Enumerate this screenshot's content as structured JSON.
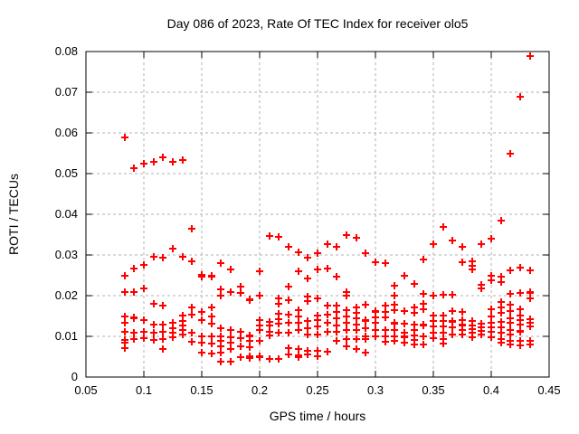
{
  "title": "Day 086 of 2023, Rate Of TEC Index for receiver olo5",
  "colors": {
    "marker": "#ff0000",
    "grid": "#b0b0b0",
    "axis": "#000000",
    "text": "#000000",
    "background": "#ffffff"
  },
  "chart_data": {
    "type": "scatter",
    "title": "Day 086 of 2023, Rate Of TEC Index for receiver olo5",
    "xlabel": "GPS time / hours",
    "ylabel": "ROTI / TECUs",
    "xlim": [
      0.05,
      0.45
    ],
    "ylim": [
      0,
      0.08
    ],
    "x_ticks": [
      "0.05",
      "0.1",
      "0.15",
      "0.2",
      "0.25",
      "0.3",
      "0.35",
      "0.4",
      "0.45"
    ],
    "y_ticks": [
      "0",
      "0.01",
      "0.02",
      "0.03",
      "0.04",
      "0.05",
      "0.06",
      "0.07",
      "0.08"
    ],
    "grid": true,
    "grid_style": "dashed",
    "legend": "none",
    "marker": {
      "shape": "plus",
      "color": "#ff0000",
      "size": 9
    },
    "points": [
      [
        0.0833,
        0.059
      ],
      [
        0.0833,
        0.025
      ],
      [
        0.0833,
        0.021
      ],
      [
        0.0833,
        0.015
      ],
      [
        0.0833,
        0.0133
      ],
      [
        0.0833,
        0.0112
      ],
      [
        0.0833,
        0.0092
      ],
      [
        0.0833,
        0.0085
      ],
      [
        0.0833,
        0.0072
      ],
      [
        0.0917,
        0.0513
      ],
      [
        0.0917,
        0.0267
      ],
      [
        0.0917,
        0.0209
      ],
      [
        0.0917,
        0.0147
      ],
      [
        0.0917,
        0.0145
      ],
      [
        0.0917,
        0.011
      ],
      [
        0.0917,
        0.0093
      ],
      [
        0.1,
        0.0525
      ],
      [
        0.1,
        0.0276
      ],
      [
        0.1,
        0.0218
      ],
      [
        0.1,
        0.0141
      ],
      [
        0.1,
        0.0112
      ],
      [
        0.1,
        0.0095
      ],
      [
        0.1083,
        0.053
      ],
      [
        0.1083,
        0.0296
      ],
      [
        0.1083,
        0.018
      ],
      [
        0.1083,
        0.013
      ],
      [
        0.1083,
        0.011
      ],
      [
        0.1083,
        0.0091
      ],
      [
        0.1167,
        0.054
      ],
      [
        0.1167,
        0.0293
      ],
      [
        0.1167,
        0.0176
      ],
      [
        0.1167,
        0.0128
      ],
      [
        0.1167,
        0.0112
      ],
      [
        0.1167,
        0.0093
      ],
      [
        0.1167,
        0.0069
      ],
      [
        0.125,
        0.053
      ],
      [
        0.125,
        0.0315
      ],
      [
        0.125,
        0.0134
      ],
      [
        0.125,
        0.0121
      ],
      [
        0.125,
        0.011
      ],
      [
        0.125,
        0.0098
      ],
      [
        0.1333,
        0.0533
      ],
      [
        0.1333,
        0.0296
      ],
      [
        0.1333,
        0.0151
      ],
      [
        0.1333,
        0.0138
      ],
      [
        0.1333,
        0.0127
      ],
      [
        0.1333,
        0.0116
      ],
      [
        0.1333,
        0.0105
      ],
      [
        0.1417,
        0.0365
      ],
      [
        0.1417,
        0.0285
      ],
      [
        0.1417,
        0.0171
      ],
      [
        0.1417,
        0.0154
      ],
      [
        0.1417,
        0.011
      ],
      [
        0.1417,
        0.0108
      ],
      [
        0.1417,
        0.0087
      ],
      [
        0.15,
        0.0252
      ],
      [
        0.15,
        0.0247
      ],
      [
        0.15,
        0.016
      ],
      [
        0.15,
        0.0139
      ],
      [
        0.15,
        0.01
      ],
      [
        0.15,
        0.0085
      ],
      [
        0.15,
        0.006
      ],
      [
        0.1583,
        0.025
      ],
      [
        0.1583,
        0.0246
      ],
      [
        0.1583,
        0.0171
      ],
      [
        0.1583,
        0.0149
      ],
      [
        0.1583,
        0.0131
      ],
      [
        0.1583,
        0.01
      ],
      [
        0.1583,
        0.0082
      ],
      [
        0.1583,
        0.0057
      ],
      [
        0.1667,
        0.028
      ],
      [
        0.1667,
        0.0216
      ],
      [
        0.1667,
        0.02
      ],
      [
        0.1667,
        0.012
      ],
      [
        0.1667,
        0.01
      ],
      [
        0.1667,
        0.0088
      ],
      [
        0.1667,
        0.0075
      ],
      [
        0.1667,
        0.006
      ],
      [
        0.1667,
        0.0038
      ],
      [
        0.175,
        0.0265
      ],
      [
        0.175,
        0.021
      ],
      [
        0.175,
        0.0115
      ],
      [
        0.175,
        0.0098
      ],
      [
        0.175,
        0.0085
      ],
      [
        0.175,
        0.007
      ],
      [
        0.175,
        0.0037
      ],
      [
        0.1833,
        0.0222
      ],
      [
        0.1833,
        0.0206
      ],
      [
        0.1833,
        0.0112
      ],
      [
        0.1833,
        0.0096
      ],
      [
        0.1833,
        0.0075
      ],
      [
        0.1833,
        0.0048
      ],
      [
        0.1917,
        0.0191
      ],
      [
        0.1917,
        0.0188
      ],
      [
        0.1917,
        0.0102
      ],
      [
        0.1917,
        0.0101
      ],
      [
        0.1917,
        0.0088
      ],
      [
        0.1917,
        0.0074
      ],
      [
        0.1917,
        0.0051
      ],
      [
        0.1917,
        0.0046
      ],
      [
        0.2,
        0.026
      ],
      [
        0.2,
        0.0199
      ],
      [
        0.2,
        0.0139
      ],
      [
        0.2,
        0.0127
      ],
      [
        0.2,
        0.0116
      ],
      [
        0.2,
        0.0088
      ],
      [
        0.2,
        0.0051
      ],
      [
        0.2,
        0.0048
      ],
      [
        0.2083,
        0.0346
      ],
      [
        0.2083,
        0.0136
      ],
      [
        0.2083,
        0.0126
      ],
      [
        0.2083,
        0.0112
      ],
      [
        0.2083,
        0.0102
      ],
      [
        0.2083,
        0.0044
      ],
      [
        0.2167,
        0.0344
      ],
      [
        0.2167,
        0.0194
      ],
      [
        0.2167,
        0.0179
      ],
      [
        0.2167,
        0.0156
      ],
      [
        0.2167,
        0.0143
      ],
      [
        0.2167,
        0.0131
      ],
      [
        0.2167,
        0.0108
      ],
      [
        0.2167,
        0.0044
      ],
      [
        0.225,
        0.032
      ],
      [
        0.225,
        0.0222
      ],
      [
        0.225,
        0.019
      ],
      [
        0.225,
        0.0154
      ],
      [
        0.225,
        0.0134
      ],
      [
        0.225,
        0.0108
      ],
      [
        0.225,
        0.0071
      ],
      [
        0.225,
        0.0056
      ],
      [
        0.2333,
        0.0307
      ],
      [
        0.2333,
        0.026
      ],
      [
        0.2333,
        0.0164
      ],
      [
        0.2333,
        0.0149
      ],
      [
        0.2333,
        0.0134
      ],
      [
        0.2333,
        0.0116
      ],
      [
        0.2333,
        0.0068
      ],
      [
        0.2333,
        0.0054
      ],
      [
        0.2333,
        0.005
      ],
      [
        0.2417,
        0.0293
      ],
      [
        0.2417,
        0.0242
      ],
      [
        0.2417,
        0.0198
      ],
      [
        0.2417,
        0.0187
      ],
      [
        0.2417,
        0.0138
      ],
      [
        0.2417,
        0.0119
      ],
      [
        0.2417,
        0.0105
      ],
      [
        0.2417,
        0.0064
      ],
      [
        0.2417,
        0.0056
      ],
      [
        0.25,
        0.0304
      ],
      [
        0.25,
        0.0264
      ],
      [
        0.25,
        0.0194
      ],
      [
        0.25,
        0.0152
      ],
      [
        0.25,
        0.0139
      ],
      [
        0.25,
        0.0125
      ],
      [
        0.25,
        0.0104
      ],
      [
        0.25,
        0.0065
      ],
      [
        0.25,
        0.0052
      ],
      [
        0.2583,
        0.0326
      ],
      [
        0.2583,
        0.0267
      ],
      [
        0.2583,
        0.0176
      ],
      [
        0.2583,
        0.0153
      ],
      [
        0.2583,
        0.0133
      ],
      [
        0.2583,
        0.0111
      ],
      [
        0.2583,
        0.0062
      ],
      [
        0.2667,
        0.032
      ],
      [
        0.2667,
        0.0246
      ],
      [
        0.2667,
        0.0175
      ],
      [
        0.2667,
        0.0159
      ],
      [
        0.2667,
        0.0144
      ],
      [
        0.2667,
        0.0127
      ],
      [
        0.2667,
        0.0112
      ],
      [
        0.2667,
        0.009
      ],
      [
        0.275,
        0.035
      ],
      [
        0.275,
        0.0209
      ],
      [
        0.275,
        0.0201
      ],
      [
        0.275,
        0.0164
      ],
      [
        0.275,
        0.0149
      ],
      [
        0.275,
        0.0134
      ],
      [
        0.275,
        0.0116
      ],
      [
        0.275,
        0.0093
      ],
      [
        0.275,
        0.0075
      ],
      [
        0.2833,
        0.0342
      ],
      [
        0.2833,
        0.0171
      ],
      [
        0.2833,
        0.0158
      ],
      [
        0.2833,
        0.0145
      ],
      [
        0.2833,
        0.013
      ],
      [
        0.2833,
        0.0116
      ],
      [
        0.2833,
        0.0093
      ],
      [
        0.2833,
        0.0068
      ],
      [
        0.2917,
        0.0305
      ],
      [
        0.2917,
        0.0178
      ],
      [
        0.2917,
        0.014
      ],
      [
        0.2917,
        0.0137
      ],
      [
        0.2917,
        0.0119
      ],
      [
        0.2917,
        0.01
      ],
      [
        0.2917,
        0.0093
      ],
      [
        0.2917,
        0.0059
      ],
      [
        0.3,
        0.0283
      ],
      [
        0.3,
        0.0162
      ],
      [
        0.3,
        0.016
      ],
      [
        0.3,
        0.0147
      ],
      [
        0.3,
        0.0134
      ],
      [
        0.3,
        0.0116
      ],
      [
        0.3,
        0.0101
      ],
      [
        0.3,
        0.0099
      ],
      [
        0.3083,
        0.0281
      ],
      [
        0.3083,
        0.0176
      ],
      [
        0.3083,
        0.0161
      ],
      [
        0.3083,
        0.0147
      ],
      [
        0.3083,
        0.0116
      ],
      [
        0.3083,
        0.01
      ],
      [
        0.3083,
        0.0086
      ],
      [
        0.3167,
        0.0224
      ],
      [
        0.3167,
        0.0199
      ],
      [
        0.3167,
        0.0178
      ],
      [
        0.3167,
        0.0164
      ],
      [
        0.3167,
        0.0134
      ],
      [
        0.3167,
        0.0131
      ],
      [
        0.3167,
        0.0116
      ],
      [
        0.3167,
        0.01
      ],
      [
        0.3167,
        0.0089
      ],
      [
        0.325,
        0.0248
      ],
      [
        0.325,
        0.0163
      ],
      [
        0.325,
        0.0131
      ],
      [
        0.325,
        0.011
      ],
      [
        0.325,
        0.01
      ],
      [
        0.325,
        0.0098
      ],
      [
        0.325,
        0.0085
      ],
      [
        0.3333,
        0.023
      ],
      [
        0.3333,
        0.0171
      ],
      [
        0.3333,
        0.0157
      ],
      [
        0.3333,
        0.0128
      ],
      [
        0.3333,
        0.0116
      ],
      [
        0.3333,
        0.0103
      ],
      [
        0.3333,
        0.0092
      ],
      [
        0.3333,
        0.0081
      ],
      [
        0.3417,
        0.029
      ],
      [
        0.3417,
        0.0204
      ],
      [
        0.3417,
        0.018
      ],
      [
        0.3417,
        0.0166
      ],
      [
        0.3417,
        0.0129
      ],
      [
        0.3417,
        0.0127
      ],
      [
        0.3417,
        0.01
      ],
      [
        0.3417,
        0.0079
      ],
      [
        0.35,
        0.0326
      ],
      [
        0.35,
        0.0199
      ],
      [
        0.35,
        0.0151
      ],
      [
        0.35,
        0.0137
      ],
      [
        0.35,
        0.0125
      ],
      [
        0.35,
        0.0108
      ],
      [
        0.35,
        0.0095
      ],
      [
        0.3583,
        0.037
      ],
      [
        0.3583,
        0.0203
      ],
      [
        0.3583,
        0.0152
      ],
      [
        0.3583,
        0.0138
      ],
      [
        0.3583,
        0.0124
      ],
      [
        0.3583,
        0.0108
      ],
      [
        0.3583,
        0.0094
      ],
      [
        0.3583,
        0.0083
      ],
      [
        0.3667,
        0.0335
      ],
      [
        0.3667,
        0.0203
      ],
      [
        0.3667,
        0.0163
      ],
      [
        0.3667,
        0.0138
      ],
      [
        0.3667,
        0.0136
      ],
      [
        0.3667,
        0.0123
      ],
      [
        0.3667,
        0.0105
      ],
      [
        0.375,
        0.032
      ],
      [
        0.375,
        0.0283
      ],
      [
        0.375,
        0.0159
      ],
      [
        0.375,
        0.0141
      ],
      [
        0.375,
        0.0128
      ],
      [
        0.375,
        0.0127
      ],
      [
        0.375,
        0.0115
      ],
      [
        0.375,
        0.0105
      ],
      [
        0.3833,
        0.0285
      ],
      [
        0.3833,
        0.0273
      ],
      [
        0.3833,
        0.0264
      ],
      [
        0.3833,
        0.0138
      ],
      [
        0.3833,
        0.0126
      ],
      [
        0.3833,
        0.0117
      ],
      [
        0.3833,
        0.0108
      ],
      [
        0.3833,
        0.0097
      ],
      [
        0.3917,
        0.0326
      ],
      [
        0.3917,
        0.0227
      ],
      [
        0.3917,
        0.0217
      ],
      [
        0.3917,
        0.0131
      ],
      [
        0.3917,
        0.0122
      ],
      [
        0.3917,
        0.0114
      ],
      [
        0.3917,
        0.0105
      ],
      [
        0.4,
        0.034
      ],
      [
        0.4,
        0.025
      ],
      [
        0.4,
        0.0237
      ],
      [
        0.4,
        0.0166
      ],
      [
        0.4,
        0.0148
      ],
      [
        0.4,
        0.0134
      ],
      [
        0.4,
        0.0122
      ],
      [
        0.4,
        0.0112
      ],
      [
        0.4,
        0.0098
      ],
      [
        0.4083,
        0.0384
      ],
      [
        0.4083,
        0.0246
      ],
      [
        0.4083,
        0.0233
      ],
      [
        0.4083,
        0.0185
      ],
      [
        0.4083,
        0.0171
      ],
      [
        0.4083,
        0.0158
      ],
      [
        0.4083,
        0.0136
      ],
      [
        0.4083,
        0.0122
      ],
      [
        0.4083,
        0.0108
      ],
      [
        0.4083,
        0.0093
      ],
      [
        0.4083,
        0.0085
      ],
      [
        0.4167,
        0.055
      ],
      [
        0.4167,
        0.0262
      ],
      [
        0.4167,
        0.0204
      ],
      [
        0.4167,
        0.0178
      ],
      [
        0.4167,
        0.0163
      ],
      [
        0.4167,
        0.0144
      ],
      [
        0.4167,
        0.0134
      ],
      [
        0.4167,
        0.0116
      ],
      [
        0.4167,
        0.0104
      ],
      [
        0.4167,
        0.009
      ],
      [
        0.4167,
        0.0079
      ],
      [
        0.425,
        0.069
      ],
      [
        0.425,
        0.027
      ],
      [
        0.425,
        0.0206
      ],
      [
        0.425,
        0.0167
      ],
      [
        0.425,
        0.0151
      ],
      [
        0.425,
        0.014
      ],
      [
        0.425,
        0.0128
      ],
      [
        0.425,
        0.0113
      ],
      [
        0.425,
        0.0111
      ],
      [
        0.425,
        0.009
      ],
      [
        0.425,
        0.0078
      ],
      [
        0.4333,
        0.079
      ],
      [
        0.4333,
        0.0262
      ],
      [
        0.4333,
        0.0209
      ],
      [
        0.4333,
        0.0207
      ],
      [
        0.4333,
        0.0194
      ],
      [
        0.4333,
        0.0143
      ],
      [
        0.4333,
        0.0134
      ],
      [
        0.4333,
        0.0125
      ],
      [
        0.4333,
        0.009
      ],
      [
        0.4333,
        0.0081
      ]
    ]
  }
}
